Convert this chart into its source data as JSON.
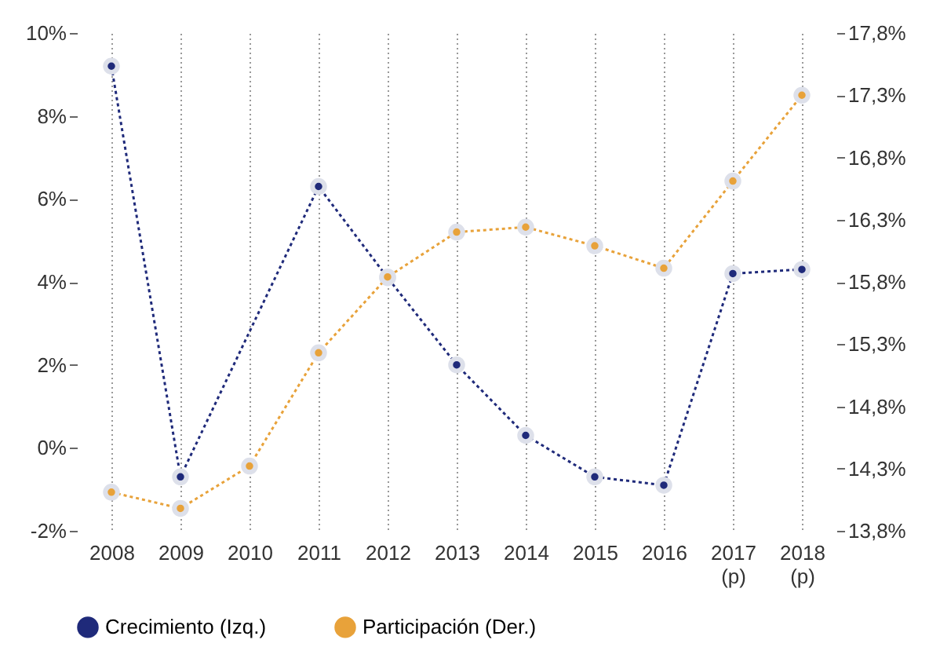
{
  "chart_data": {
    "type": "line",
    "categories": [
      "2008",
      "2009",
      "2010",
      "2011",
      "2012",
      "2013",
      "2014",
      "2015",
      "2016",
      "2017\n(p)",
      "2018\n(p)"
    ],
    "series": [
      {
        "name": "Crecimiento (Izq.)",
        "color": "#1f2a7a",
        "values": [
          9.2,
          -0.7,
          null,
          6.3,
          4.1,
          2.0,
          0.3,
          -0.7,
          -0.9,
          4.2,
          4.3
        ]
      },
      {
        "name": "Participación (Der.)",
        "color": "#e8a23a",
        "axis": "y2",
        "values": [
          14.11,
          13.98,
          14.32,
          15.23,
          15.84,
          16.2,
          16.24,
          16.09,
          15.91,
          16.61,
          17.3
        ]
      }
    ],
    "ylim": [
      -2,
      10
    ],
    "yticks": [
      {
        "value": -2,
        "label": "-2%"
      },
      {
        "value": 0,
        "label": "0%"
      },
      {
        "value": 2,
        "label": "2%"
      },
      {
        "value": 4,
        "label": "4%"
      },
      {
        "value": 6,
        "label": "6%"
      },
      {
        "value": 8,
        "label": "8%"
      },
      {
        "value": 10,
        "label": "10%"
      }
    ],
    "y2lim": [
      13.8,
      17.8
    ],
    "y2ticks": [
      {
        "value": 13.8,
        "label": "13,8%"
      },
      {
        "value": 14.3,
        "label": "14,3%"
      },
      {
        "value": 14.8,
        "label": "14,8%"
      },
      {
        "value": 15.3,
        "label": "15,3%"
      },
      {
        "value": 15.8,
        "label": "15,8%"
      },
      {
        "value": 16.3,
        "label": "16,3%"
      },
      {
        "value": 16.8,
        "label": "16,8%"
      },
      {
        "value": 17.3,
        "label": "17,3%"
      },
      {
        "value": 17.8,
        "label": "17,8%"
      }
    ],
    "grid": "x",
    "legend": "bottom",
    "marker": "circle",
    "line_style": "dotted"
  }
}
